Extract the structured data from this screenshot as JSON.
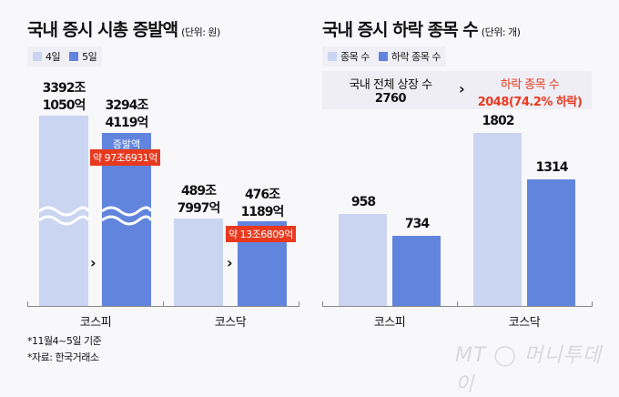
{
  "left": {
    "title": "국내 증시 시총 증발액",
    "unit": "(단위: 원)",
    "legend": [
      "4일",
      "5일"
    ],
    "categories": [
      "코스피",
      "코스닥"
    ],
    "kospi": {
      "d4_top": "3392조",
      "d4_bottom": "1050억",
      "d5_top": "3294조",
      "d5_bottom": "4119억",
      "inner_label": "증발액",
      "diff": "약 97조6931억"
    },
    "kosdaq": {
      "d4_top": "489조",
      "d4_bottom": "7997억",
      "d5_top": "476조",
      "d5_bottom": "1189억",
      "diff": "약 13조6809억"
    }
  },
  "right": {
    "title": "국내 증시 하락 종목 수",
    "unit": "(단위: 개)",
    "legend": [
      "종목 수",
      "하락 종목 수"
    ],
    "info": {
      "total_label": "국내 전체 상장 수",
      "total_value": "2760",
      "falling_label": "하락 종목 수",
      "falling_value": "2048(74.2% 하락)"
    }
  },
  "chart_data": [
    {
      "type": "bar",
      "title": "국내 증시 시총 증발액",
      "unit": "원",
      "categories": [
        "코스피",
        "코스닥"
      ],
      "series": [
        {
          "name": "4일",
          "values": [
            "3392조1050억",
            "489조7997억"
          ]
        },
        {
          "name": "5일",
          "values": [
            "3294조4119억",
            "476조1189억"
          ]
        }
      ],
      "axis_break": true
    },
    {
      "type": "bar",
      "title": "국내 증시 하락 종목 수",
      "unit": "개",
      "categories": [
        "코스피",
        "코스닥"
      ],
      "series": [
        {
          "name": "종목 수",
          "values": [
            958,
            1802
          ]
        },
        {
          "name": "하락 종목 수",
          "values": [
            734,
            1314
          ]
        }
      ]
    }
  ],
  "notes": [
    "*11월4~5일 기준",
    "*자료: 한국거래소"
  ],
  "watermark": "MT 머니투데이",
  "colors": {
    "light": "#cad5f2",
    "dark": "#6184dd",
    "red": "#e8391f"
  }
}
